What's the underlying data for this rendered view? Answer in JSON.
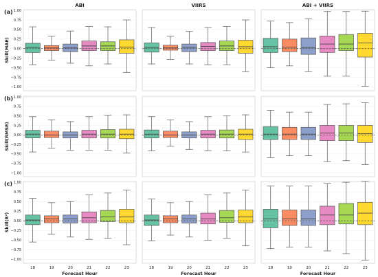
{
  "chart_data": {
    "type": "box",
    "column_titles": [
      "ABI",
      "VIIRS",
      "ABI + VIIRS"
    ],
    "row_labels": [
      "(a)",
      "(b)",
      "(c)"
    ],
    "ylabels": [
      "Skill(MAE)",
      "Skill(RMSE)",
      "Skill(R²)"
    ],
    "xlabel": "Forecast Hour",
    "categories": [
      "18",
      "19",
      "20",
      "21",
      "22",
      "23"
    ],
    "ylim": [
      -1.1,
      1.02
    ],
    "yticks": [
      1.0,
      0.75,
      0.5,
      0.25,
      0.0,
      -0.25,
      -0.5,
      -0.75,
      -1.0
    ],
    "ytick_labels": [
      "1.00",
      "0.75",
      "0.50",
      "0.25",
      "0.00",
      "−0.25",
      "−0.50",
      "−0.75",
      "−1.00"
    ],
    "reference_line": 0,
    "colors": [
      "#66c2a5",
      "#fc8d62",
      "#8da0cb",
      "#e78ac3",
      "#a6d854",
      "#ffd92f"
    ],
    "panels": [
      [
        {
          "boxes": [
            [
              -0.42,
              -0.1,
              0.03,
              0.14,
              0.57
            ],
            [
              -0.3,
              -0.05,
              0.02,
              0.08,
              0.33
            ],
            [
              -0.38,
              -0.08,
              0.02,
              0.12,
              0.46
            ],
            [
              -0.45,
              -0.05,
              0.07,
              0.2,
              0.58
            ],
            [
              -0.4,
              -0.05,
              0.07,
              0.18,
              0.57
            ],
            [
              -0.62,
              -0.12,
              0.04,
              0.23,
              0.75
            ]
          ]
        },
        {
          "boxes": [
            [
              -0.4,
              -0.09,
              0.03,
              0.15,
              0.55
            ],
            [
              -0.28,
              -0.04,
              0.02,
              0.09,
              0.33
            ],
            [
              -0.4,
              -0.08,
              0.03,
              0.12,
              0.45
            ],
            [
              -0.42,
              -0.05,
              0.06,
              0.16,
              0.55
            ],
            [
              -0.42,
              -0.05,
              0.07,
              0.2,
              0.58
            ],
            [
              -0.6,
              -0.12,
              0.05,
              0.22,
              0.75
            ]
          ]
        },
        {
          "boxes": [
            [
              -0.5,
              -0.1,
              0.05,
              0.27,
              0.72
            ],
            [
              -0.45,
              -0.08,
              0.04,
              0.25,
              0.68
            ],
            [
              -0.6,
              -0.15,
              0.03,
              0.28,
              0.78
            ],
            [
              -0.72,
              -0.1,
              0.12,
              0.33,
              0.97
            ],
            [
              -0.72,
              -0.05,
              0.12,
              0.37,
              0.97
            ],
            [
              -0.98,
              -0.22,
              0.15,
              0.4,
              0.98
            ]
          ]
        }
      ],
      [
        {
          "boxes": [
            [
              -0.45,
              -0.08,
              0.02,
              0.12,
              0.48
            ],
            [
              -0.35,
              -0.07,
              0.0,
              0.1,
              0.4
            ],
            [
              -0.4,
              -0.08,
              0.0,
              0.08,
              0.35
            ],
            [
              -0.4,
              -0.08,
              0.02,
              0.12,
              0.48
            ],
            [
              -0.4,
              -0.08,
              0.02,
              0.14,
              0.52
            ],
            [
              -0.48,
              -0.1,
              0.02,
              0.15,
              0.53
            ]
          ]
        },
        {
          "boxes": [
            [
              -0.42,
              -0.08,
              0.02,
              0.13,
              0.48
            ],
            [
              -0.3,
              -0.07,
              0.0,
              0.1,
              0.4
            ],
            [
              -0.38,
              -0.08,
              0.0,
              0.08,
              0.35
            ],
            [
              -0.42,
              -0.08,
              0.02,
              0.12,
              0.48
            ],
            [
              -0.42,
              -0.08,
              0.02,
              0.13,
              0.5
            ],
            [
              -0.45,
              -0.12,
              0.02,
              0.15,
              0.53
            ]
          ]
        },
        {
          "boxes": [
            [
              -0.6,
              -0.12,
              0.02,
              0.22,
              0.65
            ],
            [
              -0.55,
              -0.12,
              0.02,
              0.2,
              0.6
            ],
            [
              -0.55,
              -0.12,
              0.02,
              0.2,
              0.6
            ],
            [
              -0.7,
              -0.15,
              0.05,
              0.25,
              0.8
            ],
            [
              -0.68,
              -0.15,
              0.05,
              0.25,
              0.82
            ],
            [
              -0.78,
              -0.2,
              0.03,
              0.25,
              0.85
            ]
          ]
        }
      ],
      [
        {
          "boxes": [
            [
              -0.55,
              -0.1,
              0.02,
              0.15,
              0.58
            ],
            [
              -0.35,
              -0.05,
              0.05,
              0.13,
              0.47
            ],
            [
              -0.42,
              -0.06,
              0.05,
              0.15,
              0.5
            ],
            [
              -0.48,
              -0.05,
              0.08,
              0.23,
              0.67
            ],
            [
              -0.45,
              -0.02,
              0.1,
              0.27,
              0.72
            ],
            [
              -0.62,
              -0.05,
              0.1,
              0.3,
              0.8
            ]
          ]
        },
        {
          "boxes": [
            [
              -0.52,
              -0.12,
              0.02,
              0.15,
              0.57
            ],
            [
              -0.37,
              -0.05,
              0.05,
              0.13,
              0.47
            ],
            [
              -0.42,
              -0.06,
              0.05,
              0.15,
              0.5
            ],
            [
              -0.5,
              -0.08,
              0.05,
              0.2,
              0.67
            ],
            [
              -0.45,
              -0.04,
              0.08,
              0.27,
              0.72
            ],
            [
              -0.65,
              -0.05,
              0.1,
              0.28,
              0.8
            ]
          ]
        },
        {
          "boxes": [
            [
              -0.72,
              -0.18,
              0.05,
              0.3,
              0.9
            ],
            [
              -0.68,
              -0.12,
              0.05,
              0.28,
              0.9
            ],
            [
              -0.68,
              -0.12,
              0.05,
              0.28,
              0.9
            ],
            [
              -0.78,
              -0.1,
              0.15,
              0.38,
              0.97
            ],
            [
              -0.85,
              -0.08,
              0.15,
              0.45,
              1.0
            ],
            [
              -1.02,
              -0.1,
              0.2,
              0.48,
              1.02
            ]
          ]
        }
      ]
    ]
  }
}
